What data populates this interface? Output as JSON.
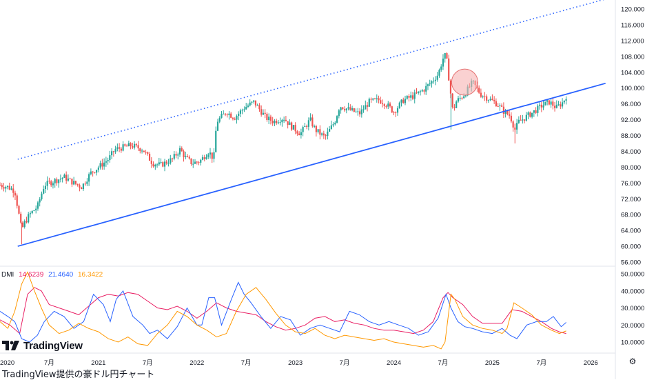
{
  "caption": "TradingView提供の豪ドル円チャート",
  "logo": {
    "text": "TradingView",
    "icon": "tradingview-logo-icon"
  },
  "settings_icon": "gear-icon",
  "colors": {
    "candle_up": "#26a69a",
    "candle_down": "#ef5350",
    "trend_line": "#2962ff",
    "channel_line": "#2962ff",
    "circle_fill": "#f7b3b3",
    "circle_stroke": "#e57373",
    "dmi_plus": "#e91e63",
    "dmi_minus": "#2962ff",
    "dmi_adx": "#ff9800"
  },
  "chart_data": [
    {
      "type": "candlestick",
      "title": "",
      "y_ticks": [
        "120.000",
        "116.000",
        "112.000",
        "108.000",
        "104.000",
        "100.000",
        "96.000",
        "92.000",
        "88.000",
        "84.000",
        "80.000",
        "76.000",
        "72.000",
        "68.000",
        "64.000",
        "60.000",
        "56.000"
      ],
      "x_ticks": [
        "2020",
        "7月",
        "2021",
        "7月",
        "2022",
        "7月",
        "2023",
        "7月",
        "2024",
        "7月",
        "2025",
        "7月",
        "2026"
      ],
      "ylim": [
        55,
        122
      ],
      "xlim": [
        2020.0,
        2026.25
      ],
      "close_path": [
        [
          2020.0,
          75.5
        ],
        [
          2020.08,
          75.0
        ],
        [
          2020.15,
          74.0
        ],
        [
          2020.22,
          64.0
        ],
        [
          2020.24,
          65.5
        ],
        [
          2020.3,
          68.0
        ],
        [
          2020.38,
          70.0
        ],
        [
          2020.45,
          75.5
        ],
        [
          2020.55,
          76.5
        ],
        [
          2020.65,
          77.5
        ],
        [
          2020.75,
          76.0
        ],
        [
          2020.83,
          75.0
        ],
        [
          2020.92,
          78.5
        ],
        [
          2021.0,
          80.0
        ],
        [
          2021.1,
          82.0
        ],
        [
          2021.17,
          84.5
        ],
        [
          2021.25,
          85.0
        ],
        [
          2021.33,
          85.5
        ],
        [
          2021.45,
          84.5
        ],
        [
          2021.55,
          81.0
        ],
        [
          2021.63,
          80.5
        ],
        [
          2021.75,
          82.0
        ],
        [
          2021.83,
          84.5
        ],
        [
          2021.88,
          82.5
        ],
        [
          2021.95,
          81.0
        ],
        [
          2022.03,
          81.5
        ],
        [
          2022.12,
          84.0
        ],
        [
          2022.17,
          82.0
        ],
        [
          2022.2,
          91.5
        ],
        [
          2022.3,
          94.0
        ],
        [
          2022.38,
          92.5
        ],
        [
          2022.48,
          95.0
        ],
        [
          2022.58,
          96.5
        ],
        [
          2022.7,
          92.5
        ],
        [
          2022.78,
          91.5
        ],
        [
          2022.88,
          92.5
        ],
        [
          2022.95,
          90.5
        ],
        [
          2023.05,
          88.5
        ],
        [
          2023.15,
          92.0
        ],
        [
          2023.2,
          89.5
        ],
        [
          2023.3,
          87.5
        ],
        [
          2023.4,
          91.5
        ],
        [
          2023.45,
          95.5
        ],
        [
          2023.55,
          94.5
        ],
        [
          2023.65,
          93.5
        ],
        [
          2023.75,
          96.5
        ],
        [
          2023.85,
          97.0
        ],
        [
          2023.92,
          96.0
        ],
        [
          2024.0,
          94.0
        ],
        [
          2024.1,
          97.0
        ],
        [
          2024.2,
          98.0
        ],
        [
          2024.3,
          99.5
        ],
        [
          2024.38,
          101.5
        ],
        [
          2024.45,
          103.5
        ],
        [
          2024.5,
          107.5
        ],
        [
          2024.53,
          108.5
        ],
        [
          2024.58,
          98.0
        ],
        [
          2024.6,
          94.0
        ],
        [
          2024.63,
          96.5
        ],
        [
          2024.72,
          98.5
        ],
        [
          2024.8,
          101.5
        ],
        [
          2024.88,
          98.5
        ],
        [
          2024.95,
          97.5
        ],
        [
          2025.05,
          96.0
        ],
        [
          2025.12,
          94.0
        ],
        [
          2025.18,
          93.0
        ],
        [
          2025.23,
          89.5
        ],
        [
          2025.27,
          91.5
        ],
        [
          2025.33,
          92.5
        ],
        [
          2025.42,
          94.0
        ],
        [
          2025.5,
          95.5
        ],
        [
          2025.58,
          96.5
        ],
        [
          2025.65,
          95.0
        ],
        [
          2025.72,
          96.5
        ],
        [
          2025.75,
          98.0
        ]
      ]
    },
    {
      "type": "line",
      "title": "DMI",
      "series": [
        {
          "name": "",
          "label": "14.6239",
          "color": "#e91e63",
          "values": [
            [
              2020.0,
              23
            ],
            [
              2020.1,
              20
            ],
            [
              2020.2,
              15
            ],
            [
              2020.28,
              38
            ],
            [
              2020.35,
              42
            ],
            [
              2020.42,
              40
            ],
            [
              2020.5,
              32
            ],
            [
              2020.6,
              30
            ],
            [
              2020.7,
              28
            ],
            [
              2020.8,
              26
            ],
            [
              2020.9,
              31
            ],
            [
              2021.0,
              36
            ],
            [
              2021.1,
              38
            ],
            [
              2021.2,
              37
            ],
            [
              2021.3,
              39
            ],
            [
              2021.4,
              38
            ],
            [
              2021.5,
              34
            ],
            [
              2021.6,
              30
            ],
            [
              2021.7,
              29
            ],
            [
              2021.8,
              31
            ],
            [
              2021.9,
              28
            ],
            [
              2022.0,
              24
            ],
            [
              2022.1,
              28
            ],
            [
              2022.2,
              33
            ],
            [
              2022.3,
              30
            ],
            [
              2022.4,
              28
            ],
            [
              2022.5,
              27
            ],
            [
              2022.6,
              26
            ],
            [
              2022.7,
              22
            ],
            [
              2022.8,
              19
            ],
            [
              2022.9,
              17
            ],
            [
              2023.0,
              18
            ],
            [
              2023.1,
              20
            ],
            [
              2023.2,
              24
            ],
            [
              2023.3,
              25
            ],
            [
              2023.4,
              22
            ],
            [
              2023.5,
              23
            ],
            [
              2023.6,
              21
            ],
            [
              2023.7,
              20
            ],
            [
              2023.8,
              18
            ],
            [
              2023.9,
              17
            ],
            [
              2024.0,
              17
            ],
            [
              2024.1,
              16
            ],
            [
              2024.2,
              15
            ],
            [
              2024.3,
              17
            ],
            [
              2024.4,
              22
            ],
            [
              2024.5,
              36
            ],
            [
              2024.55,
              39
            ],
            [
              2024.6,
              36
            ],
            [
              2024.7,
              32
            ],
            [
              2024.8,
              25
            ],
            [
              2024.9,
              21
            ],
            [
              2025.0,
              21
            ],
            [
              2025.1,
              21
            ],
            [
              2025.15,
              25
            ],
            [
              2025.2,
              29
            ],
            [
              2025.3,
              28
            ],
            [
              2025.4,
              25
            ],
            [
              2025.5,
              22
            ],
            [
              2025.6,
              18
            ],
            [
              2025.68,
              16
            ],
            [
              2025.75,
              15
            ]
          ]
        },
        {
          "name": "",
          "label": "21.4640",
          "color": "#2962ff",
          "values": [
            [
              2020.0,
              28
            ],
            [
              2020.08,
              25
            ],
            [
              2020.15,
              22
            ],
            [
              2020.22,
              12
            ],
            [
              2020.3,
              10
            ],
            [
              2020.38,
              14
            ],
            [
              2020.45,
              22
            ],
            [
              2020.55,
              28
            ],
            [
              2020.65,
              25
            ],
            [
              2020.75,
              18
            ],
            [
              2020.85,
              22
            ],
            [
              2020.95,
              38
            ],
            [
              2021.05,
              32
            ],
            [
              2021.12,
              22
            ],
            [
              2021.18,
              35
            ],
            [
              2021.25,
              40
            ],
            [
              2021.35,
              25
            ],
            [
              2021.45,
              20
            ],
            [
              2021.52,
              15
            ],
            [
              2021.6,
              17
            ],
            [
              2021.7,
              12
            ],
            [
              2021.8,
              19
            ],
            [
              2021.9,
              30
            ],
            [
              2022.0,
              20
            ],
            [
              2022.05,
              20
            ],
            [
              2022.12,
              36
            ],
            [
              2022.18,
              36
            ],
            [
              2022.25,
              20
            ],
            [
              2022.35,
              35
            ],
            [
              2022.42,
              45
            ],
            [
              2022.48,
              38
            ],
            [
              2022.55,
              33
            ],
            [
              2022.65,
              25
            ],
            [
              2022.75,
              18
            ],
            [
              2022.85,
              25
            ],
            [
              2022.95,
              23
            ],
            [
              2023.05,
              14
            ],
            [
              2023.15,
              18
            ],
            [
              2023.25,
              20
            ],
            [
              2023.35,
              18
            ],
            [
              2023.45,
              16
            ],
            [
              2023.55,
              28
            ],
            [
              2023.65,
              26
            ],
            [
              2023.75,
              22
            ],
            [
              2023.85,
              20
            ],
            [
              2023.95,
              22
            ],
            [
              2024.05,
              20
            ],
            [
              2024.15,
              18
            ],
            [
              2024.25,
              14
            ],
            [
              2024.35,
              16
            ],
            [
              2024.45,
              24
            ],
            [
              2024.53,
              38
            ],
            [
              2024.58,
              30
            ],
            [
              2024.65,
              22
            ],
            [
              2024.72,
              19
            ],
            [
              2024.8,
              18
            ],
            [
              2024.9,
              16
            ],
            [
              2025.0,
              15
            ],
            [
              2025.1,
              18
            ],
            [
              2025.18,
              14
            ],
            [
              2025.25,
              12
            ],
            [
              2025.35,
              20
            ],
            [
              2025.45,
              22
            ],
            [
              2025.55,
              22
            ],
            [
              2025.62,
              25
            ],
            [
              2025.7,
              19
            ],
            [
              2025.75,
              21.5
            ]
          ]
        },
        {
          "name": "",
          "label": "16.3422",
          "color": "#ff9800",
          "values": [
            [
              2020.0,
              22
            ],
            [
              2020.08,
              18
            ],
            [
              2020.15,
              28
            ],
            [
              2020.22,
              44
            ],
            [
              2020.28,
              51
            ],
            [
              2020.35,
              40
            ],
            [
              2020.42,
              30
            ],
            [
              2020.5,
              20
            ],
            [
              2020.6,
              15
            ],
            [
              2020.7,
              17
            ],
            [
              2020.8,
              21
            ],
            [
              2020.9,
              18
            ],
            [
              2021.0,
              16
            ],
            [
              2021.1,
              12
            ],
            [
              2021.2,
              10
            ],
            [
              2021.3,
              13
            ],
            [
              2021.4,
              9
            ],
            [
              2021.5,
              8
            ],
            [
              2021.6,
              15
            ],
            [
              2021.7,
              20
            ],
            [
              2021.8,
              28
            ],
            [
              2021.9,
              25
            ],
            [
              2022.0,
              20
            ],
            [
              2022.1,
              17
            ],
            [
              2022.2,
              13
            ],
            [
              2022.3,
              15
            ],
            [
              2022.4,
              28
            ],
            [
              2022.5,
              38
            ],
            [
              2022.6,
              42
            ],
            [
              2022.7,
              35
            ],
            [
              2022.8,
              27
            ],
            [
              2022.9,
              20
            ],
            [
              2023.0,
              16
            ],
            [
              2023.1,
              15
            ],
            [
              2023.2,
              18
            ],
            [
              2023.3,
              14
            ],
            [
              2023.4,
              12
            ],
            [
              2023.5,
              14
            ],
            [
              2023.6,
              13
            ],
            [
              2023.7,
              12
            ],
            [
              2023.8,
              11
            ],
            [
              2023.9,
              12
            ],
            [
              2024.0,
              10
            ],
            [
              2024.1,
              9
            ],
            [
              2024.2,
              8
            ],
            [
              2024.3,
              7
            ],
            [
              2024.4,
              8
            ],
            [
              2024.48,
              6
            ],
            [
              2024.52,
              10
            ],
            [
              2024.58,
              38
            ],
            [
              2024.62,
              35
            ],
            [
              2024.7,
              25
            ],
            [
              2024.8,
              20
            ],
            [
              2024.9,
              18
            ],
            [
              2025.0,
              17
            ],
            [
              2025.1,
              15
            ],
            [
              2025.15,
              18
            ],
            [
              2025.22,
              33
            ],
            [
              2025.3,
              30
            ],
            [
              2025.4,
              26
            ],
            [
              2025.5,
              20
            ],
            [
              2025.6,
              17
            ],
            [
              2025.68,
              15
            ],
            [
              2025.75,
              16.5
            ]
          ]
        }
      ],
      "y_ticks": [
        "50.0000",
        "40.0000",
        "30.0000",
        "20.0000",
        "10.0000"
      ],
      "ylim": [
        5,
        52
      ]
    }
  ],
  "annotations": {
    "trend_line": [
      [
        2020.18,
        60.0
      ],
      [
        2026.15,
        101.2
      ]
    ],
    "channel_line": [
      [
        2020.18,
        82.0
      ],
      [
        2026.15,
        122.5
      ]
    ],
    "circle": {
      "x": 2024.72,
      "y": 101.5
    }
  }
}
